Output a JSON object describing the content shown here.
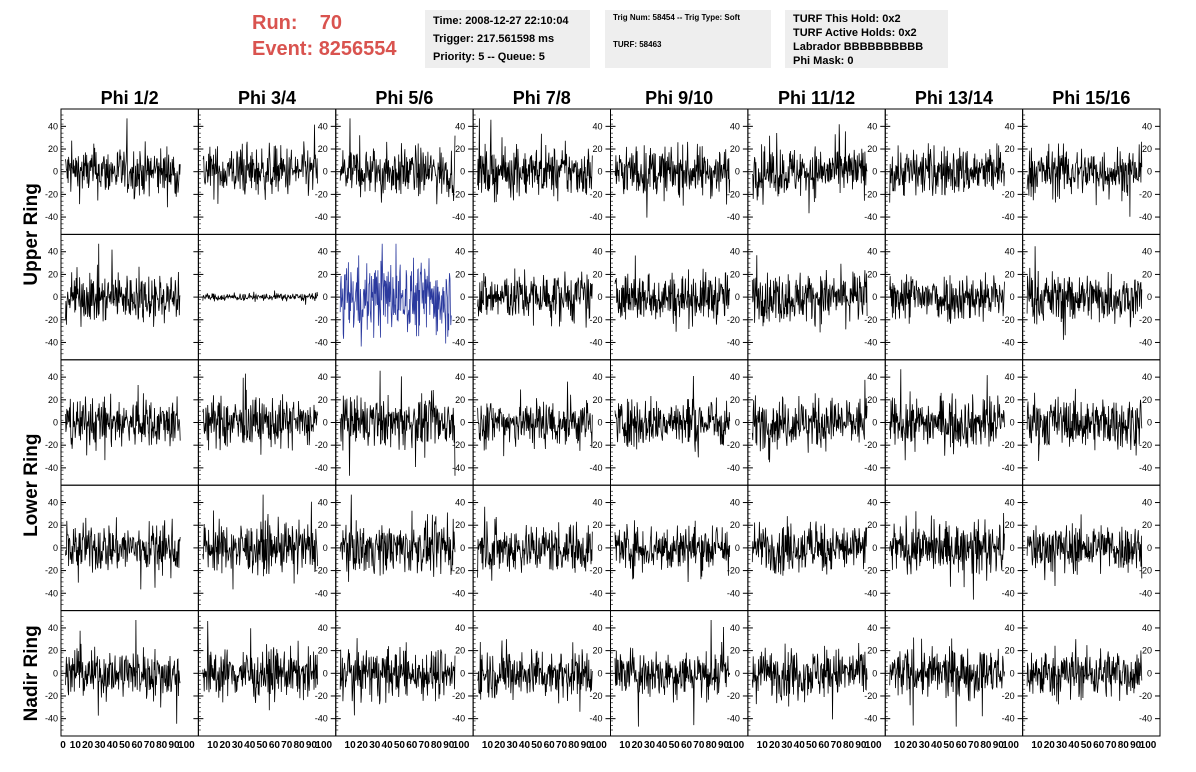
{
  "header": {
    "run_label": "Run:",
    "run_value": "70",
    "event_label": "Event:",
    "event_value": "8256554",
    "time_line": "Time: 2008-12-27 22:10:04",
    "trigger_line": "Trigger: 217.561598 ms",
    "priority_line": "Priority: 5 -- Queue: 5",
    "trig_line": "Trig Num: 58454 -- Trig Type: Soft",
    "turf_line": "TURF: 58463",
    "turf_hold_line": "TURF This Hold: 0x2",
    "turf_active_line": "TURF Active Holds: 0x2",
    "labrador_line": "Labrador BBBBBBBBBB",
    "phi_mask_line": "Phi Mask: 0"
  },
  "colors": {
    "run_text": "#d9534f",
    "info_bg": "#eeeeee",
    "trace": "#000000",
    "highlight_trace": "#2b3a9e"
  },
  "chart_data": {
    "type": "line",
    "columns": [
      "Phi 1/2",
      "Phi 3/4",
      "Phi 5/6",
      "Phi 7/8",
      "Phi 9/10",
      "Phi 11/12",
      "Phi 13/14",
      "Phi 15/16"
    ],
    "ring_labels": [
      {
        "label": "Upper Ring",
        "rows": [
          0,
          1
        ]
      },
      {
        "label": "Lower Ring",
        "rows": [
          2,
          3
        ]
      },
      {
        "label": "Nadir Ring",
        "rows": [
          4
        ]
      }
    ],
    "rows": 5,
    "xlim": [
      0,
      100
    ],
    "ylim": [
      -50,
      50
    ],
    "yticks": [
      -40,
      -20,
      0,
      20,
      40
    ],
    "xticks_text": [
      "0",
      "10",
      "20",
      "30",
      "40",
      "50",
      "60",
      "70",
      "80",
      "90",
      "100"
    ],
    "samples_per_trace": 260,
    "typical_amplitude": 20,
    "special_panels": [
      {
        "row": 1,
        "col": 1,
        "amplitude": 3,
        "note": "quiet"
      },
      {
        "row": 1,
        "col": 2,
        "amplitude": 30,
        "color": "highlight",
        "x_end": 92
      }
    ]
  }
}
